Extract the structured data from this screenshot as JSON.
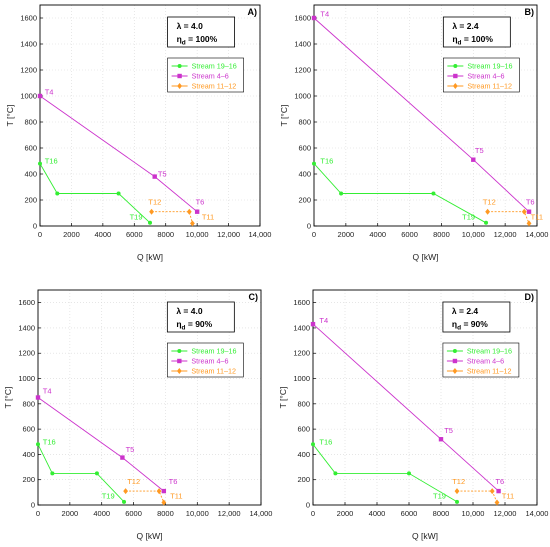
{
  "colors": {
    "stream_19_16": "#33ee33",
    "stream_4_6": "#cc33cc",
    "stream_11_12": "#ff9922",
    "axis": "#000000",
    "grid": "#d8d8d8"
  },
  "chart_data": [
    {
      "type": "line",
      "panel_label": "A)",
      "params": {
        "lambda": "λ = 4.0",
        "eta_sym": "η",
        "eta_sub": "d",
        "eta_val": " = 100%"
      },
      "xlabel": "Q [kW]",
      "ylabel": "T [°C]",
      "xlim": [
        0,
        14000
      ],
      "ylim": [
        0,
        1700
      ],
      "x_ticks": [
        0,
        2000,
        4000,
        6000,
        8000,
        10000,
        12000,
        14000
      ],
      "x_tick_labels": [
        "0",
        "2000",
        "4000",
        "6000",
        "8000",
        "10,000",
        "12,000",
        "14,000"
      ],
      "y_ticks": [
        0,
        200,
        400,
        600,
        800,
        1000,
        1200,
        1400,
        1600
      ],
      "y_tick_labels": [
        "0",
        "200",
        "400",
        "600",
        "800",
        "1000",
        "1200",
        "1400",
        "1600"
      ],
      "grid": true,
      "legend_position": "top-right",
      "series": [
        {
          "name": "Stream 19–16",
          "key": "stream_19_16",
          "marker": "circle",
          "points": [
            [
              0,
              480
            ],
            [
              1100,
              250
            ],
            [
              5000,
              250
            ],
            [
              7000,
              25
            ]
          ]
        },
        {
          "name": "Stream 4–6",
          "key": "stream_4_6",
          "marker": "square",
          "points": [
            [
              0,
              1000
            ],
            [
              7300,
              380
            ],
            [
              10000,
              110
            ]
          ]
        },
        {
          "name": "Stream 11–12",
          "key": "stream_11_12",
          "marker": "diamond",
          "points": [
            [
              7100,
              110
            ],
            [
              9500,
              110
            ],
            [
              9700,
              20
            ]
          ]
        }
      ],
      "annotations": [
        {
          "text": "T4",
          "x": 300,
          "y": 1010,
          "key": "stream_4_6"
        },
        {
          "text": "T5",
          "x": 7500,
          "y": 380,
          "key": "stream_4_6"
        },
        {
          "text": "T6",
          "x": 9900,
          "y": 165,
          "key": "stream_4_6"
        },
        {
          "text": "T16",
          "x": 300,
          "y": 480,
          "key": "stream_19_16"
        },
        {
          "text": "T19",
          "x": 5700,
          "y": 50,
          "key": "stream_19_16"
        },
        {
          "text": "T12",
          "x": 6900,
          "y": 165,
          "key": "stream_11_12"
        },
        {
          "text": "T11",
          "x": 10300,
          "y": 50,
          "key": "stream_11_12"
        }
      ]
    },
    {
      "type": "line",
      "panel_label": "B)",
      "params": {
        "lambda": "λ = 2.4",
        "eta_sym": "η",
        "eta_sub": "d",
        "eta_val": " = 100%"
      },
      "xlabel": "Q [kW]",
      "ylabel": "T [°C]",
      "xlim": [
        0,
        14000
      ],
      "ylim": [
        0,
        1700
      ],
      "x_ticks": [
        0,
        2000,
        4000,
        6000,
        8000,
        10000,
        12000,
        14000
      ],
      "x_tick_labels": [
        "0",
        "2000",
        "4000",
        "6000",
        "8000",
        "10,000",
        "12,000",
        "14,000"
      ],
      "y_ticks": [
        0,
        200,
        400,
        600,
        800,
        1000,
        1200,
        1400,
        1600
      ],
      "y_tick_labels": [
        "0",
        "200",
        "400",
        "600",
        "800",
        "1000",
        "1200",
        "1400",
        "1600"
      ],
      "grid": true,
      "legend_position": "top-right",
      "series": [
        {
          "name": "Stream 19–16",
          "key": "stream_19_16",
          "marker": "circle",
          "points": [
            [
              0,
              480
            ],
            [
              1700,
              250
            ],
            [
              7500,
              250
            ],
            [
              10800,
              25
            ]
          ]
        },
        {
          "name": "Stream 4–6",
          "key": "stream_4_6",
          "marker": "square",
          "points": [
            [
              0,
              1600
            ],
            [
              10000,
              510
            ],
            [
              13500,
              110
            ]
          ]
        },
        {
          "name": "Stream 11–12",
          "key": "stream_11_12",
          "marker": "diamond",
          "points": [
            [
              10900,
              110
            ],
            [
              13200,
              110
            ],
            [
              13500,
              20
            ]
          ]
        }
      ],
      "annotations": [
        {
          "text": "T4",
          "x": 400,
          "y": 1610,
          "key": "stream_4_6"
        },
        {
          "text": "T5",
          "x": 10100,
          "y": 560,
          "key": "stream_4_6"
        },
        {
          "text": "T6",
          "x": 13300,
          "y": 165,
          "key": "stream_4_6"
        },
        {
          "text": "T16",
          "x": 400,
          "y": 480,
          "key": "stream_19_16"
        },
        {
          "text": "T19",
          "x": 9300,
          "y": 50,
          "key": "stream_19_16"
        },
        {
          "text": "T12",
          "x": 10600,
          "y": 165,
          "key": "stream_11_12"
        },
        {
          "text": "T11",
          "x": 13600,
          "y": 50,
          "key": "stream_11_12"
        }
      ]
    },
    {
      "type": "line",
      "panel_label": "C)",
      "params": {
        "lambda": "λ = 4.0",
        "eta_sym": "η",
        "eta_sub": "d",
        "eta_val": " = 90%"
      },
      "xlabel": "Q [kW]",
      "ylabel": "T [°C]",
      "xlim": [
        0,
        14000
      ],
      "ylim": [
        0,
        1700
      ],
      "x_ticks": [
        0,
        2000,
        4000,
        6000,
        8000,
        10000,
        12000,
        14000
      ],
      "x_tick_labels": [
        "0",
        "2000",
        "4000",
        "6000",
        "8000",
        "10,000",
        "12,000",
        "14,000"
      ],
      "y_ticks": [
        0,
        200,
        400,
        600,
        800,
        1000,
        1200,
        1400,
        1600
      ],
      "y_tick_labels": [
        "0",
        "200",
        "400",
        "600",
        "800",
        "1000",
        "1200",
        "1400",
        "1600"
      ],
      "grid": true,
      "legend_position": "top-right",
      "series": [
        {
          "name": "Stream 19–16",
          "key": "stream_19_16",
          "marker": "circle",
          "points": [
            [
              0,
              480
            ],
            [
              900,
              250
            ],
            [
              3700,
              250
            ],
            [
              5400,
              25
            ]
          ]
        },
        {
          "name": "Stream 4–6",
          "key": "stream_4_6",
          "marker": "square",
          "points": [
            [
              0,
              850
            ],
            [
              5300,
              375
            ],
            [
              7900,
              110
            ]
          ]
        },
        {
          "name": "Stream 11–12",
          "key": "stream_11_12",
          "marker": "diamond",
          "points": [
            [
              5500,
              110
            ],
            [
              7600,
              110
            ],
            [
              7900,
              20
            ]
          ]
        }
      ],
      "annotations": [
        {
          "text": "T4",
          "x": 300,
          "y": 880,
          "key": "stream_4_6"
        },
        {
          "text": "T5",
          "x": 5500,
          "y": 420,
          "key": "stream_4_6"
        },
        {
          "text": "T6",
          "x": 8200,
          "y": 165,
          "key": "stream_4_6"
        },
        {
          "text": "T16",
          "x": 300,
          "y": 480,
          "key": "stream_19_16"
        },
        {
          "text": "T19",
          "x": 4000,
          "y": 50,
          "key": "stream_19_16"
        },
        {
          "text": "T12",
          "x": 5600,
          "y": 165,
          "key": "stream_11_12"
        },
        {
          "text": "T11",
          "x": 8300,
          "y": 50,
          "key": "stream_11_12"
        }
      ]
    },
    {
      "type": "line",
      "panel_label": "D)",
      "params": {
        "lambda": "λ = 2.4",
        "eta_sym": "η",
        "eta_sub": "d",
        "eta_val": " = 90%"
      },
      "xlabel": "Q [kW]",
      "ylabel": "T [°C]",
      "xlim": [
        0,
        14000
      ],
      "ylim": [
        0,
        1700
      ],
      "x_ticks": [
        0,
        2000,
        4000,
        6000,
        8000,
        10000,
        12000,
        14000
      ],
      "x_tick_labels": [
        "0",
        "2000",
        "4000",
        "6000",
        "8000",
        "10,000",
        "12,000",
        "14,000"
      ],
      "y_ticks": [
        0,
        200,
        400,
        600,
        800,
        1000,
        1200,
        1400,
        1600
      ],
      "y_tick_labels": [
        "0",
        "200",
        "400",
        "600",
        "800",
        "1000",
        "1200",
        "1400",
        "1600"
      ],
      "grid": true,
      "legend_position": "top-right",
      "series": [
        {
          "name": "Stream 19–16",
          "key": "stream_19_16",
          "marker": "circle",
          "points": [
            [
              0,
              480
            ],
            [
              1400,
              250
            ],
            [
              6000,
              250
            ],
            [
              9000,
              25
            ]
          ]
        },
        {
          "name": "Stream 4–6",
          "key": "stream_4_6",
          "marker": "square",
          "points": [
            [
              0,
              1430
            ],
            [
              8000,
              520
            ],
            [
              11600,
              110
            ]
          ]
        },
        {
          "name": "Stream 11–12",
          "key": "stream_11_12",
          "marker": "diamond",
          "points": [
            [
              9000,
              110
            ],
            [
              11200,
              110
            ],
            [
              11500,
              20
            ]
          ]
        }
      ],
      "annotations": [
        {
          "text": "T4",
          "x": 400,
          "y": 1440,
          "key": "stream_4_6"
        },
        {
          "text": "T5",
          "x": 8200,
          "y": 570,
          "key": "stream_4_6"
        },
        {
          "text": "T6",
          "x": 11400,
          "y": 165,
          "key": "stream_4_6"
        },
        {
          "text": "T16",
          "x": 400,
          "y": 480,
          "key": "stream_19_16"
        },
        {
          "text": "T19",
          "x": 7500,
          "y": 50,
          "key": "stream_19_16"
        },
        {
          "text": "T12",
          "x": 8700,
          "y": 165,
          "key": "stream_11_12"
        },
        {
          "text": "T11",
          "x": 11800,
          "y": 50,
          "key": "stream_11_12"
        }
      ]
    }
  ]
}
